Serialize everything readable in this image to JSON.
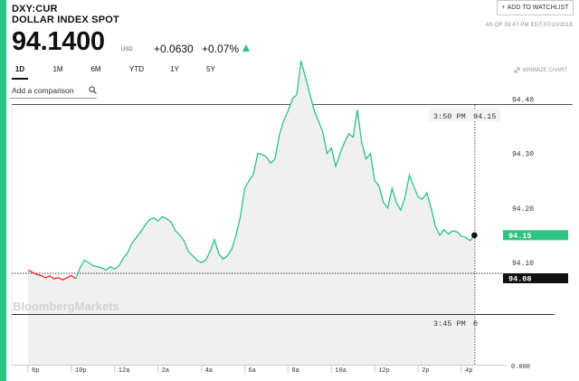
{
  "quote": {
    "ticker": "DXY:CUR",
    "name": "DOLLAR INDEX SPOT",
    "price": "94.1400",
    "unit": "USD",
    "change": "+0.0630",
    "change_pct": "+0.07%",
    "as_of": "AS OF 03:47 PM EDT 07/10/2018",
    "direction": "up"
  },
  "watchlist_label": "ADD TO WATCHLIST",
  "tabs": [
    "1D",
    "1M",
    "6M",
    "YTD",
    "1Y",
    "5Y"
  ],
  "active_tab": "1D",
  "minimize_label": "MINIMIZE CHART",
  "comparison_placeholder": "Add a comparison",
  "colors": {
    "accent": "#2cc384",
    "negative": "#e8231c",
    "positive": "#2cc384"
  },
  "chart_data": {
    "type": "line",
    "y_axis_ticks": [
      "94.40",
      "94.30",
      "94.20",
      "94.10"
    ],
    "ylim": [
      94.06,
      94.48
    ],
    "x_axis_ticks": [
      "8p",
      "10p",
      "12a",
      "2a",
      "4a",
      "6a",
      "8a",
      "10a",
      "12p",
      "2p",
      "4p"
    ],
    "crosshair_time": "3:50 PM",
    "crosshair_value": "94.15",
    "last_value_label": "94.15",
    "reference_label": "94.08",
    "reference_value": 94.08,
    "watermark": "BloombergMarkets",
    "series": [
      {
        "color": "negative",
        "values": [
          [
            0.0,
            94.086
          ],
          [
            0.2,
            94.082
          ],
          [
            0.4,
            94.078
          ],
          [
            0.6,
            94.076
          ],
          [
            0.8,
            94.072
          ],
          [
            1.0,
            94.075
          ],
          [
            1.2,
            94.07
          ],
          [
            1.4,
            94.072
          ],
          [
            1.6,
            94.068
          ],
          [
            1.8,
            94.072
          ],
          [
            2.0,
            94.076
          ],
          [
            2.2,
            94.07
          ]
        ]
      },
      {
        "color": "positive",
        "values": [
          [
            2.2,
            94.07
          ],
          [
            2.4,
            94.09
          ],
          [
            2.6,
            94.104
          ],
          [
            2.8,
            94.1
          ],
          [
            3.0,
            94.094
          ],
          [
            3.2,
            94.092
          ],
          [
            3.4,
            94.09
          ],
          [
            3.6,
            94.086
          ],
          [
            3.8,
            94.092
          ],
          [
            4.0,
            94.088
          ],
          [
            4.2,
            94.094
          ],
          [
            4.4,
            94.108
          ],
          [
            4.6,
            94.118
          ],
          [
            4.8,
            94.136
          ],
          [
            5.0,
            94.146
          ],
          [
            5.2,
            94.156
          ],
          [
            5.4,
            94.168
          ],
          [
            5.6,
            94.178
          ],
          [
            5.8,
            94.182
          ],
          [
            6.0,
            94.176
          ],
          [
            6.2,
            94.184
          ],
          [
            6.4,
            94.18
          ],
          [
            6.6,
            94.174
          ],
          [
            6.8,
            94.158
          ],
          [
            7.0,
            94.15
          ],
          [
            7.2,
            94.14
          ],
          [
            7.4,
            94.12
          ],
          [
            7.6,
            94.112
          ],
          [
            7.8,
            94.104
          ],
          [
            8.0,
            94.1
          ],
          [
            8.2,
            94.104
          ],
          [
            8.4,
            94.12
          ],
          [
            8.6,
            94.142
          ],
          [
            8.8,
            94.116
          ],
          [
            9.0,
            94.106
          ],
          [
            9.2,
            94.112
          ],
          [
            9.4,
            94.124
          ],
          [
            9.6,
            94.15
          ],
          [
            9.8,
            94.184
          ],
          [
            10.0,
            94.236
          ],
          [
            10.2,
            94.25
          ],
          [
            10.4,
            94.262
          ],
          [
            10.6,
            94.3
          ],
          [
            10.8,
            94.298
          ],
          [
            11.0,
            94.294
          ],
          [
            11.2,
            94.282
          ],
          [
            11.4,
            94.29
          ],
          [
            11.6,
            94.334
          ],
          [
            11.8,
            94.36
          ],
          [
            12.0,
            94.378
          ],
          [
            12.2,
            94.4
          ],
          [
            12.4,
            94.408
          ],
          [
            12.6,
            94.47
          ],
          [
            12.8,
            94.44
          ],
          [
            13.0,
            94.41
          ],
          [
            13.2,
            94.38
          ],
          [
            13.4,
            94.36
          ],
          [
            13.6,
            94.34
          ],
          [
            13.8,
            94.3
          ],
          [
            14.0,
            94.31
          ],
          [
            14.2,
            94.276
          ],
          [
            14.4,
            94.3
          ],
          [
            14.6,
            94.32
          ],
          [
            14.8,
            94.336
          ],
          [
            15.0,
            94.33
          ],
          [
            15.2,
            94.38
          ],
          [
            15.4,
            94.32
          ],
          [
            15.6,
            94.29
          ],
          [
            15.8,
            94.3
          ],
          [
            16.0,
            94.25
          ],
          [
            16.2,
            94.24
          ],
          [
            16.4,
            94.21
          ],
          [
            16.6,
            94.2
          ],
          [
            16.8,
            94.236
          ],
          [
            17.0,
            94.21
          ],
          [
            17.2,
            94.196
          ],
          [
            17.4,
            94.22
          ],
          [
            17.6,
            94.26
          ],
          [
            17.8,
            94.24
          ],
          [
            18.0,
            94.22
          ],
          [
            18.2,
            94.216
          ],
          [
            18.4,
            94.228
          ],
          [
            18.6,
            94.2
          ],
          [
            18.8,
            94.166
          ],
          [
            19.0,
            94.15
          ],
          [
            19.2,
            94.16
          ],
          [
            19.4,
            94.152
          ],
          [
            19.6,
            94.158
          ],
          [
            19.8,
            94.156
          ],
          [
            20.0,
            94.148
          ],
          [
            20.2,
            94.146
          ],
          [
            20.4,
            94.14
          ],
          [
            20.6,
            94.15
          ]
        ]
      }
    ]
  }
}
